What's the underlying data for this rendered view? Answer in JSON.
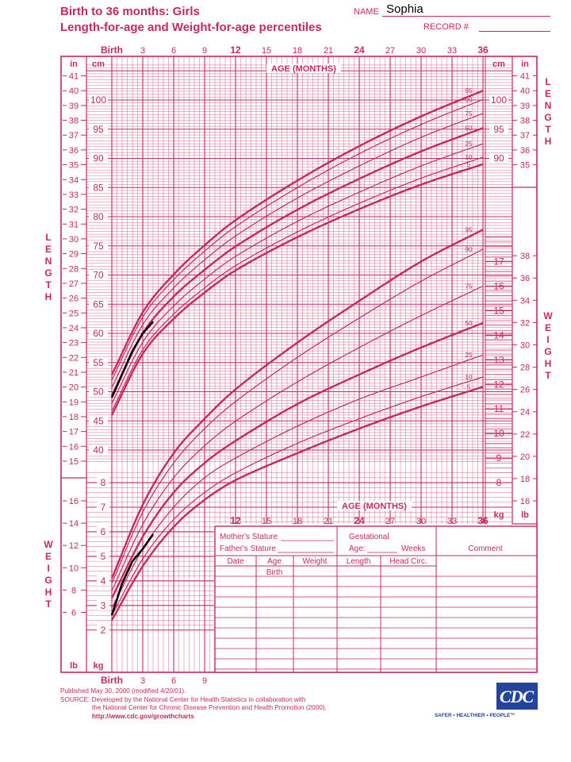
{
  "header": {
    "title_line1": "Birth to 36 months: Girls",
    "title_line2": "Length-for-age and Weight-for-age percentiles",
    "name_label": "NAME",
    "name_value": "Sophia",
    "record_label": "RECORD #"
  },
  "footer": {
    "line1": "Published May 30, 2000 (modified 4/20/01).",
    "line2": "SOURCE: Developed by the National Center for Health Statistics in collaboration with",
    "line3": "the National Center for Chronic Disease Prevention and Health Promotion (2000).",
    "link": "http://www.cdc.gov/growthcharts",
    "logo_text": "CDC",
    "tagline": "SAFER • HEALTHIER • PEOPLE™"
  },
  "colors": {
    "chart": "#c8285a",
    "patient": "#000000",
    "logo": "#24439a"
  },
  "table": {
    "mothers_stature": "Mother's Stature",
    "fathers_stature": "Father's Stature",
    "gestational": "Gestational",
    "age_label": "Age:",
    "weeks_label": "Weeks",
    "comment": "Comment",
    "headers": [
      "Date",
      "Age",
      "Weight",
      "Length",
      "Head Circ."
    ],
    "birth_label": "Birth"
  },
  "chart_data": [
    {
      "type": "line",
      "title": "Length-for-age",
      "xlabel": "AGE (MONTHS)",
      "ylabel": "LENGTH",
      "unit_left": "cm",
      "unit_outer": "in",
      "x_ticks": [
        "Birth",
        "3",
        "6",
        "9",
        "12",
        "15",
        "18",
        "21",
        "24",
        "27",
        "30",
        "33",
        "36"
      ],
      "xlim": [
        0,
        36
      ],
      "ylim_cm": [
        38,
        108
      ],
      "percentiles": [
        {
          "name": "5",
          "x": [
            0,
            3,
            6,
            9,
            12,
            18,
            24,
            30,
            36
          ],
          "y": [
            46.0,
            56.5,
            62.5,
            67.0,
            70.8,
            76.5,
            81.3,
            85.5,
            89.0
          ]
        },
        {
          "name": "10",
          "x": [
            0,
            3,
            6,
            9,
            12,
            18,
            24,
            30,
            36
          ],
          "y": [
            46.7,
            57.2,
            63.3,
            67.8,
            71.6,
            77.4,
            82.3,
            86.6,
            90.2
          ]
        },
        {
          "name": "25",
          "x": [
            0,
            3,
            6,
            9,
            12,
            18,
            24,
            30,
            36
          ],
          "y": [
            48.0,
            58.5,
            64.7,
            69.3,
            73.2,
            79.2,
            84.2,
            88.7,
            92.5
          ]
        },
        {
          "name": "50",
          "x": [
            0,
            3,
            6,
            9,
            12,
            18,
            24,
            30,
            36
          ],
          "y": [
            49.3,
            60.0,
            66.3,
            70.9,
            74.9,
            81.2,
            86.5,
            91.2,
            95.2
          ]
        },
        {
          "name": "75",
          "x": [
            0,
            3,
            6,
            9,
            12,
            18,
            24,
            30,
            36
          ],
          "y": [
            50.7,
            61.5,
            67.8,
            72.6,
            76.7,
            83.2,
            88.7,
            93.6,
            97.7
          ]
        },
        {
          "name": "90",
          "x": [
            0,
            3,
            6,
            9,
            12,
            18,
            24,
            30,
            36
          ],
          "y": [
            52.0,
            62.8,
            69.2,
            74.1,
            78.3,
            85.0,
            90.8,
            95.8,
            100.1
          ]
        },
        {
          "name": "95",
          "x": [
            0,
            3,
            6,
            9,
            12,
            18,
            24,
            30,
            36
          ],
          "y": [
            52.9,
            63.6,
            70.1,
            75.1,
            79.4,
            86.2,
            92.1,
            97.2,
            101.6
          ]
        }
      ],
      "patient": {
        "x": [
          0,
          1,
          2,
          3,
          4
        ],
        "y": [
          49.0,
          53.0,
          57.0,
          60.0,
          62.0
        ]
      }
    },
    {
      "type": "line",
      "title": "Weight-for-age",
      "xlabel": "AGE (MONTHS)",
      "ylabel": "WEIGHT",
      "unit_left": "kg",
      "unit_outer": "lb",
      "x_ticks": [
        "Birth",
        "3",
        "6",
        "9",
        "12",
        "15",
        "18",
        "21",
        "24",
        "27",
        "30",
        "33",
        "36"
      ],
      "xlim": [
        0,
        36
      ],
      "ylim_kg": [
        1.5,
        18
      ],
      "percentiles": [
        {
          "name": "5",
          "x": [
            0,
            3,
            6,
            9,
            12,
            18,
            24,
            30,
            36
          ],
          "y": [
            2.4,
            4.6,
            6.2,
            7.3,
            8.1,
            9.2,
            10.2,
            11.1,
            11.9
          ]
        },
        {
          "name": "10",
          "x": [
            0,
            3,
            6,
            9,
            12,
            18,
            24,
            30,
            36
          ],
          "y": [
            2.6,
            4.9,
            6.5,
            7.6,
            8.4,
            9.6,
            10.6,
            11.5,
            12.3
          ]
        },
        {
          "name": "25",
          "x": [
            0,
            3,
            6,
            9,
            12,
            18,
            24,
            30,
            36
          ],
          "y": [
            2.9,
            5.3,
            7.0,
            8.2,
            9.0,
            10.3,
            11.4,
            12.3,
            13.2
          ]
        },
        {
          "name": "50",
          "x": [
            0,
            3,
            6,
            9,
            12,
            18,
            24,
            30,
            36
          ],
          "y": [
            3.3,
            5.8,
            7.6,
            8.8,
            9.7,
            11.2,
            12.4,
            13.5,
            14.5
          ]
        },
        {
          "name": "75",
          "x": [
            0,
            3,
            6,
            9,
            12,
            18,
            24,
            30,
            36
          ],
          "y": [
            3.6,
            6.3,
            8.2,
            9.5,
            10.5,
            12.1,
            13.5,
            14.8,
            16.0
          ]
        },
        {
          "name": "90",
          "x": [
            0,
            3,
            6,
            9,
            12,
            18,
            24,
            30,
            36
          ],
          "y": [
            3.9,
            6.8,
            8.8,
            10.2,
            11.3,
            13.1,
            14.7,
            16.2,
            17.5
          ]
        },
        {
          "name": "95",
          "x": [
            0,
            3,
            6,
            9,
            12,
            18,
            24,
            30,
            36
          ],
          "y": [
            4.1,
            7.1,
            9.2,
            10.6,
            11.8,
            13.7,
            15.4,
            17.0,
            18.3
          ]
        }
      ],
      "patient": {
        "x": [
          0,
          1,
          2,
          3,
          4
        ],
        "y": [
          2.6,
          3.9,
          4.8,
          5.3,
          5.9
        ]
      }
    }
  ]
}
